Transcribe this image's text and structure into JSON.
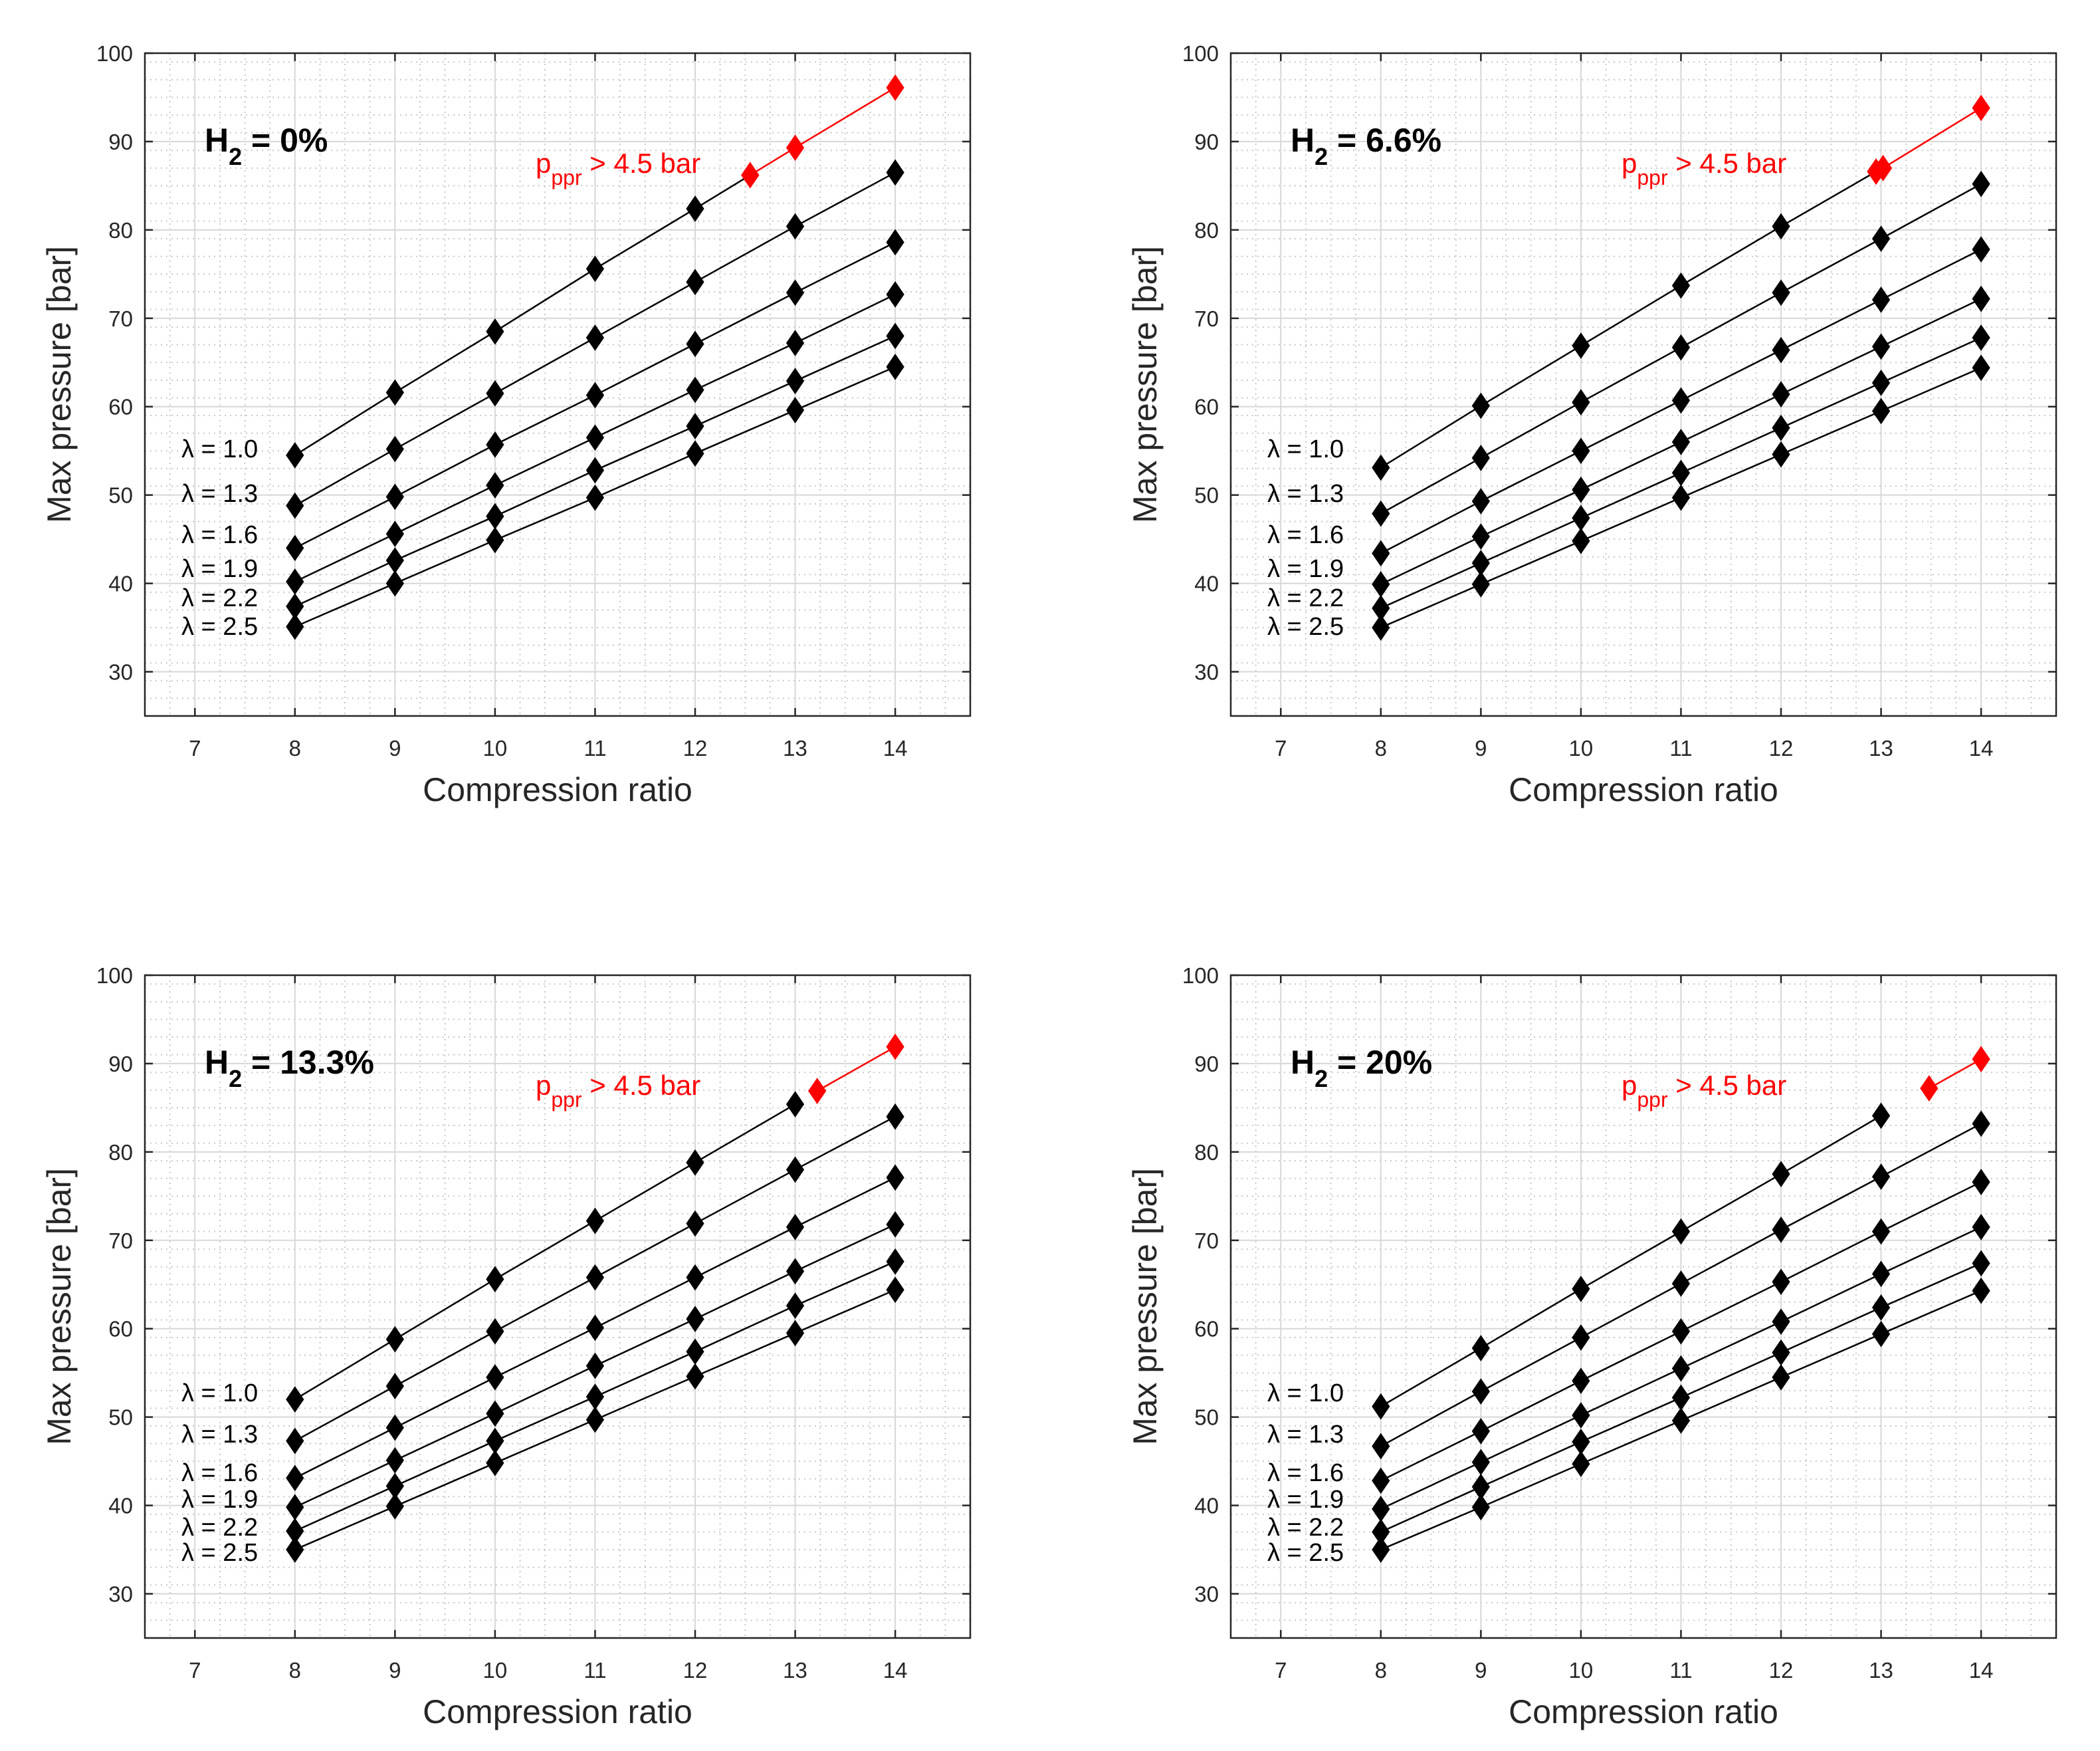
{
  "chart_data": [
    {
      "type": "line",
      "panel_label": {
        "base": "H",
        "sub": "2",
        "rest": " = 0%"
      },
      "annotation": {
        "base": "p",
        "sub": "ppr",
        "rest": " > 4.5 bar"
      },
      "xlabel": "Compression ratio",
      "ylabel": "Max pressure [bar]",
      "xlim": [
        6.5,
        14.75
      ],
      "ylim": [
        25,
        100
      ],
      "xticks": [
        "7",
        "8",
        "9",
        "10",
        "11",
        "12",
        "13",
        "14"
      ],
      "yticks": [
        "30",
        "40",
        "50",
        "60",
        "70",
        "80",
        "90",
        "100"
      ],
      "grid": true,
      "minor_grid": true,
      "series": [
        {
          "name": "λ = 1.0",
          "x": [
            8,
            9,
            10,
            11,
            12,
            12.55
          ],
          "y": [
            54.5,
            61.6,
            68.5,
            75.6,
            82.4,
            86.2
          ],
          "high_x": [
            12.55,
            13,
            14
          ],
          "high_y": [
            86.2,
            89.3,
            96.1
          ]
        },
        {
          "name": "λ = 1.3",
          "x": [
            8,
            9,
            10,
            11,
            12,
            13,
            14
          ],
          "y": [
            48.8,
            55.2,
            61.5,
            67.8,
            74.1,
            80.4,
            86.5
          ]
        },
        {
          "name": "λ = 1.6",
          "x": [
            8,
            9,
            10,
            11,
            12,
            13,
            14
          ],
          "y": [
            44.0,
            49.8,
            55.7,
            61.3,
            67.1,
            72.9,
            78.6
          ]
        },
        {
          "name": "λ = 1.9",
          "x": [
            8,
            9,
            10,
            11,
            12,
            13,
            14
          ],
          "y": [
            40.2,
            45.6,
            51.1,
            56.5,
            61.9,
            67.2,
            72.7
          ]
        },
        {
          "name": "λ = 2.2",
          "x": [
            8,
            9,
            10,
            11,
            12,
            13,
            14
          ],
          "y": [
            37.4,
            42.6,
            47.6,
            52.8,
            57.8,
            62.9,
            68.0
          ]
        },
        {
          "name": "λ = 2.5",
          "x": [
            8,
            9,
            10,
            11,
            12,
            13,
            14
          ],
          "y": [
            35.1,
            40.0,
            44.9,
            49.7,
            54.7,
            59.6,
            64.5
          ]
        }
      ],
      "colors": {
        "normal": "#000000",
        "high": "#ff0000"
      }
    },
    {
      "type": "line",
      "panel_label": {
        "base": "H",
        "sub": "2",
        "rest": " = 6.6%"
      },
      "annotation": {
        "base": "p",
        "sub": "ppr",
        "rest": " > 4.5 bar"
      },
      "xlabel": "Compression ratio",
      "ylabel": "Max pressure [bar]",
      "xlim": [
        6.5,
        14.75
      ],
      "ylim": [
        25,
        100
      ],
      "xticks": [
        "7",
        "8",
        "9",
        "10",
        "11",
        "12",
        "13",
        "14"
      ],
      "yticks": [
        "30",
        "40",
        "50",
        "60",
        "70",
        "80",
        "90",
        "100"
      ],
      "grid": true,
      "minor_grid": true,
      "series": [
        {
          "name": "λ = 1.0",
          "x": [
            8,
            9,
            10,
            11,
            12,
            12.95
          ],
          "y": [
            53.1,
            60.1,
            66.9,
            73.7,
            80.4,
            86.6
          ],
          "high_x": [
            12.95,
            13.02,
            14
          ],
          "high_y": [
            86.6,
            87.0,
            93.8
          ]
        },
        {
          "name": "λ = 1.3",
          "x": [
            8,
            9,
            10,
            11,
            12,
            13,
            14
          ],
          "y": [
            47.9,
            54.2,
            60.5,
            66.7,
            72.9,
            79.0,
            85.2
          ]
        },
        {
          "name": "λ = 1.6",
          "x": [
            8,
            9,
            10,
            11,
            12,
            13,
            14
          ],
          "y": [
            43.4,
            49.3,
            55.0,
            60.7,
            66.4,
            72.1,
            77.8
          ]
        },
        {
          "name": "λ = 1.9",
          "x": [
            8,
            9,
            10,
            11,
            12,
            13,
            14
          ],
          "y": [
            39.9,
            45.3,
            50.6,
            56.0,
            61.4,
            66.8,
            72.2
          ]
        },
        {
          "name": "λ = 2.2",
          "x": [
            8,
            9,
            10,
            11,
            12,
            13,
            14
          ],
          "y": [
            37.2,
            42.3,
            47.4,
            52.5,
            57.6,
            62.7,
            67.8
          ]
        },
        {
          "name": "λ = 2.5",
          "x": [
            8,
            9,
            10,
            11,
            12,
            13,
            14
          ],
          "y": [
            35.0,
            39.9,
            44.8,
            49.7,
            54.6,
            59.5,
            64.4
          ]
        }
      ],
      "colors": {
        "normal": "#000000",
        "high": "#ff0000"
      }
    },
    {
      "type": "line",
      "panel_label": {
        "base": "H",
        "sub": "2",
        "rest": " = 13.3%"
      },
      "annotation": {
        "base": "p",
        "sub": "ppr",
        "rest": " > 4.5 bar"
      },
      "xlabel": "Compression ratio",
      "ylabel": "Max pressure [bar]",
      "xlim": [
        6.5,
        14.75
      ],
      "ylim": [
        25,
        100
      ],
      "xticks": [
        "7",
        "8",
        "9",
        "10",
        "11",
        "12",
        "13",
        "14"
      ],
      "yticks": [
        "30",
        "40",
        "50",
        "60",
        "70",
        "80",
        "90",
        "100"
      ],
      "grid": true,
      "minor_grid": true,
      "series": [
        {
          "name": "λ = 1.0",
          "x": [
            8,
            9,
            10,
            11,
            12,
            13
          ],
          "y": [
            52.0,
            58.8,
            65.6,
            72.2,
            78.8,
            85.4
          ],
          "high_x": [
            13.22,
            14
          ],
          "high_y": [
            86.9,
            91.9
          ]
        },
        {
          "name": "λ = 1.3",
          "x": [
            8,
            9,
            10,
            11,
            12,
            13,
            14
          ],
          "y": [
            47.3,
            53.5,
            59.7,
            65.8,
            71.9,
            78.0,
            84.0
          ]
        },
        {
          "name": "λ = 1.6",
          "x": [
            8,
            9,
            10,
            11,
            12,
            13,
            14
          ],
          "y": [
            43.1,
            48.8,
            54.5,
            60.1,
            65.8,
            71.5,
            77.1
          ]
        },
        {
          "name": "λ = 1.9",
          "x": [
            8,
            9,
            10,
            11,
            12,
            13,
            14
          ],
          "y": [
            39.8,
            45.1,
            50.4,
            55.8,
            61.1,
            66.5,
            71.8
          ]
        },
        {
          "name": "λ = 2.2",
          "x": [
            8,
            9,
            10,
            11,
            12,
            13,
            14
          ],
          "y": [
            37.1,
            42.2,
            47.3,
            52.3,
            57.4,
            62.6,
            67.6
          ]
        },
        {
          "name": "λ = 2.5",
          "x": [
            8,
            9,
            10,
            11,
            12,
            13,
            14
          ],
          "y": [
            35.0,
            39.9,
            44.8,
            49.7,
            54.6,
            59.5,
            64.4
          ]
        }
      ],
      "colors": {
        "normal": "#000000",
        "high": "#ff0000"
      }
    },
    {
      "type": "line",
      "panel_label": {
        "base": "H",
        "sub": "2",
        "rest": " = 20%"
      },
      "annotation": {
        "base": "p",
        "sub": "ppr",
        "rest": " > 4.5 bar"
      },
      "xlabel": "Compression ratio",
      "ylabel": "Max pressure [bar]",
      "xlim": [
        6.5,
        14.75
      ],
      "ylim": [
        25,
        100
      ],
      "xticks": [
        "7",
        "8",
        "9",
        "10",
        "11",
        "12",
        "13",
        "14"
      ],
      "yticks": [
        "30",
        "40",
        "50",
        "60",
        "70",
        "80",
        "90",
        "100"
      ],
      "grid": true,
      "minor_grid": true,
      "series": [
        {
          "name": "λ = 1.0",
          "x": [
            8,
            9,
            10,
            11,
            12,
            13
          ],
          "y": [
            51.2,
            57.8,
            64.5,
            71.0,
            77.5,
            84.1
          ],
          "high_x": [
            13.48,
            14
          ],
          "high_y": [
            87.2,
            90.5
          ]
        },
        {
          "name": "λ = 1.3",
          "x": [
            8,
            9,
            10,
            11,
            12,
            13,
            14
          ],
          "y": [
            46.7,
            52.9,
            59.0,
            65.1,
            71.2,
            77.2,
            83.2
          ]
        },
        {
          "name": "λ = 1.6",
          "x": [
            8,
            9,
            10,
            11,
            12,
            13,
            14
          ],
          "y": [
            42.8,
            48.4,
            54.1,
            59.7,
            65.3,
            71.0,
            76.6
          ]
        },
        {
          "name": "λ = 1.9",
          "x": [
            8,
            9,
            10,
            11,
            12,
            13,
            14
          ],
          "y": [
            39.6,
            44.9,
            50.2,
            55.5,
            60.8,
            66.2,
            71.5
          ]
        },
        {
          "name": "λ = 2.2",
          "x": [
            8,
            9,
            10,
            11,
            12,
            13,
            14
          ],
          "y": [
            37.0,
            42.1,
            47.2,
            52.2,
            57.3,
            62.4,
            67.4
          ]
        },
        {
          "name": "λ = 2.5",
          "x": [
            8,
            9,
            10,
            11,
            12,
            13,
            14
          ],
          "y": [
            35.0,
            39.8,
            44.7,
            49.6,
            54.5,
            59.4,
            64.3
          ]
        }
      ],
      "colors": {
        "normal": "#000000",
        "high": "#ff0000"
      }
    }
  ]
}
